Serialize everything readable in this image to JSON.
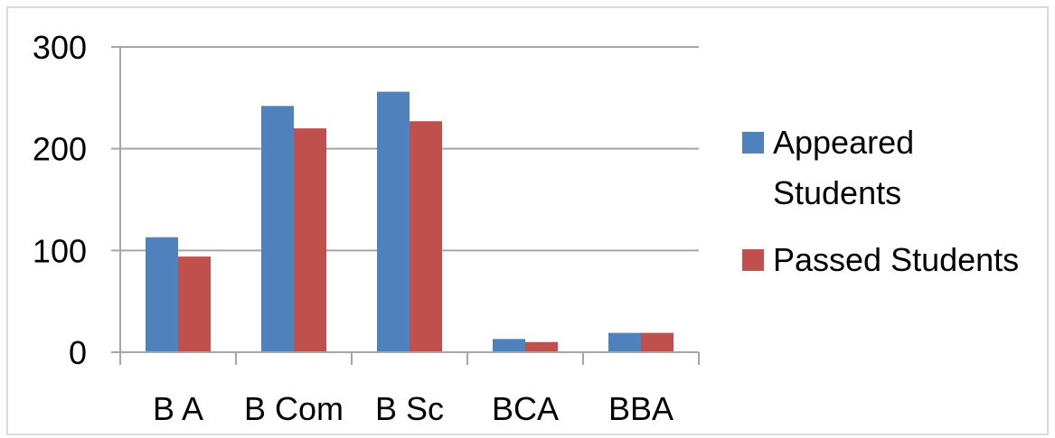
{
  "chart_data": {
    "type": "bar",
    "title": "",
    "xlabel": "",
    "ylabel": "",
    "categories": [
      "B A",
      "B Com",
      "B Sc",
      "BCA",
      "BBA"
    ],
    "series": [
      {
        "name": "Appeared Students",
        "color": "#4F81BD",
        "values": [
          113,
          242,
          256,
          13,
          19
        ]
      },
      {
        "name": "Passed Students",
        "color": "#C0504D",
        "values": [
          94,
          220,
          227,
          10,
          19
        ]
      }
    ],
    "ylim": [
      0,
      300
    ],
    "yticks": [
      "0",
      "100",
      "200",
      "300"
    ],
    "grid": true,
    "legend_position": "right",
    "legend_lines": [
      [
        "Appeared",
        "Students"
      ],
      [
        "Passed Students"
      ]
    ]
  }
}
